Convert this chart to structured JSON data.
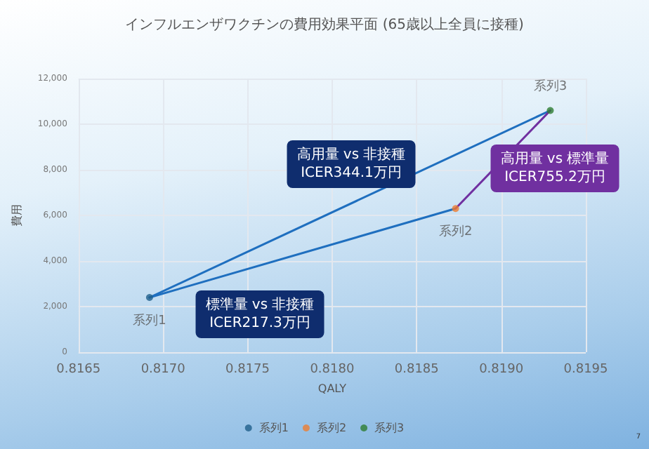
{
  "chart_data": {
    "type": "scatter",
    "title": "インフルエンザワクチンの費用効果平面 (65歳以上全員に接種)",
    "xlabel": "QALY",
    "ylabel": "費用",
    "xlim": [
      0.8165,
      0.8195
    ],
    "xticks": [
      {
        "value": 0.8165,
        "label": "0.8165"
      },
      {
        "value": 0.817,
        "label": "0.8170"
      },
      {
        "value": 0.8175,
        "label": "0.8175"
      },
      {
        "value": 0.818,
        "label": "0.8180"
      },
      {
        "value": 0.8185,
        "label": "0.8185"
      },
      {
        "value": 0.819,
        "label": "0.8190"
      },
      {
        "value": 0.8195,
        "label": "0.8195"
      }
    ],
    "ylim": [
      0,
      12000
    ],
    "yticks": [
      {
        "value": 0,
        "label": "0"
      },
      {
        "value": 2000,
        "label": "2,000"
      },
      {
        "value": 4000,
        "label": "4,000"
      },
      {
        "value": 6000,
        "label": "6,000"
      },
      {
        "value": 8000,
        "label": "8,000"
      },
      {
        "value": 10000,
        "label": "10,000"
      },
      {
        "value": 12000,
        "label": "12,000"
      }
    ],
    "series": [
      {
        "name": "系列1",
        "color": "#1f5f8b",
        "x": [
          0.81692
        ],
        "values": [
          2400
        ]
      },
      {
        "name": "系列2",
        "color": "#ed7d31",
        "x": [
          0.81873
        ],
        "values": [
          6300
        ]
      },
      {
        "name": "系列3",
        "color": "#2e7d32",
        "x": [
          0.81929
        ],
        "values": [
          10600
        ]
      },
      {
        "type": "line",
        "color": "#1f6fbf",
        "marker": "none",
        "x": [
          0.81692,
          0.81873
        ],
        "values": [
          2400,
          6300
        ]
      },
      {
        "type": "line",
        "color": "#1f6fbf",
        "marker": "none",
        "x": [
          0.81692,
          0.81929
        ],
        "values": [
          2400,
          10600
        ]
      },
      {
        "type": "line",
        "color": "#7030a0",
        "marker": "none",
        "x": [
          0.81873,
          0.81929
        ],
        "values": [
          6300,
          10600
        ]
      }
    ],
    "annotations": [
      "高用量 vs 非接種\nICER344.1万円",
      "標準量 vs 非接種\nICER217.3万円",
      "高用量 vs 標準量\nICER755.2万円",
      "7"
    ],
    "grid": true,
    "legend": "bottom",
    "marker": "circle",
    "line_style": "solid"
  }
}
